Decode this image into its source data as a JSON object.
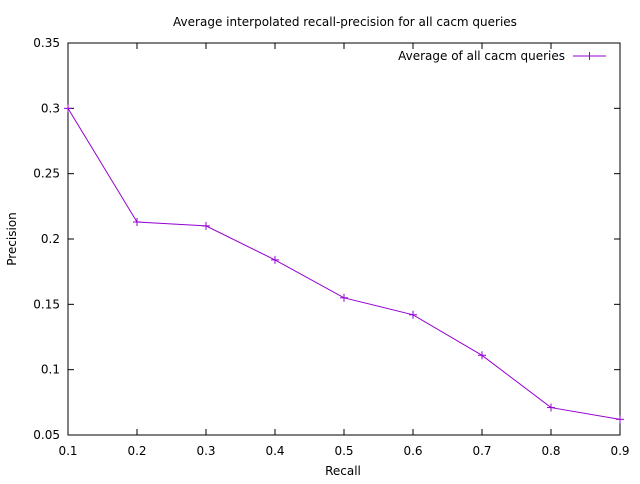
{
  "chart_data": {
    "type": "line",
    "title": "Average interpolated recall-precision for all cacm queries",
    "xlabel": "Recall",
    "ylabel": "Precision",
    "xlim": [
      0.1,
      0.9
    ],
    "ylim": [
      0.05,
      0.35
    ],
    "x_ticks": [
      "0.1",
      "0.2",
      "0.3",
      "0.4",
      "0.5",
      "0.6",
      "0.7",
      "0.8",
      "0.9"
    ],
    "y_ticks": [
      "0.05",
      "0.1",
      "0.15",
      "0.2",
      "0.25",
      "0.3",
      "0.35"
    ],
    "grid": false,
    "legend_position": "top-right",
    "series": [
      {
        "name": "Average of all cacm queries",
        "color": "#9400d3",
        "marker": "plus",
        "x": [
          0.1,
          0.2,
          0.3,
          0.4,
          0.5,
          0.6,
          0.7,
          0.8,
          0.9
        ],
        "y": [
          0.3,
          0.213,
          0.21,
          0.184,
          0.155,
          0.142,
          0.111,
          0.071,
          0.062
        ]
      }
    ]
  }
}
